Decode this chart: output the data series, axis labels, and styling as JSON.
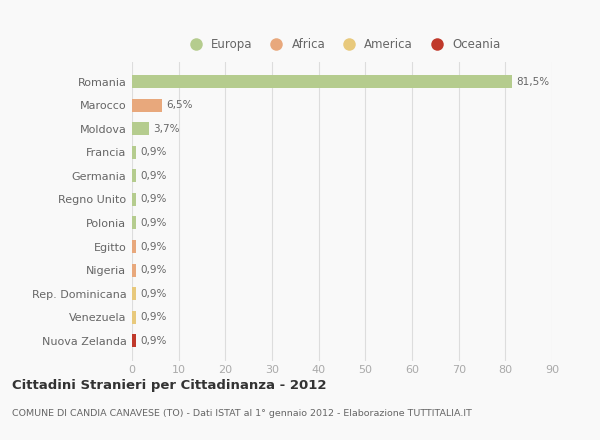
{
  "countries": [
    "Romania",
    "Marocco",
    "Moldova",
    "Francia",
    "Germania",
    "Regno Unito",
    "Polonia",
    "Egitto",
    "Nigeria",
    "Rep. Dominicana",
    "Venezuela",
    "Nuova Zelanda"
  ],
  "values": [
    81.5,
    6.5,
    3.7,
    0.9,
    0.9,
    0.9,
    0.9,
    0.9,
    0.9,
    0.9,
    0.9,
    0.9
  ],
  "labels": [
    "81,5%",
    "6,5%",
    "3,7%",
    "0,9%",
    "0,9%",
    "0,9%",
    "0,9%",
    "0,9%",
    "0,9%",
    "0,9%",
    "0,9%",
    "0,9%"
  ],
  "colors": [
    "#b5cc8e",
    "#e8a87c",
    "#b5cc8e",
    "#b5cc8e",
    "#b5cc8e",
    "#b5cc8e",
    "#b5cc8e",
    "#e8a87c",
    "#e8a87c",
    "#e8c97c",
    "#e8c97c",
    "#c0392b"
  ],
  "legend_labels": [
    "Europa",
    "Africa",
    "America",
    "Oceania"
  ],
  "legend_colors": [
    "#b5cc8e",
    "#e8a87c",
    "#e8c97c",
    "#c0392b"
  ],
  "xlim": [
    0,
    90
  ],
  "xticks": [
    0,
    10,
    20,
    30,
    40,
    50,
    60,
    70,
    80,
    90
  ],
  "title": "Cittadini Stranieri per Cittadinanza - 2012",
  "subtitle": "COMUNE DI CANDIA CANAVESE (TO) - Dati ISTAT al 1° gennaio 2012 - Elaborazione TUTTITALIA.IT",
  "bg_color": "#f9f9f9",
  "grid_color": "#dddddd",
  "bar_height": 0.55
}
